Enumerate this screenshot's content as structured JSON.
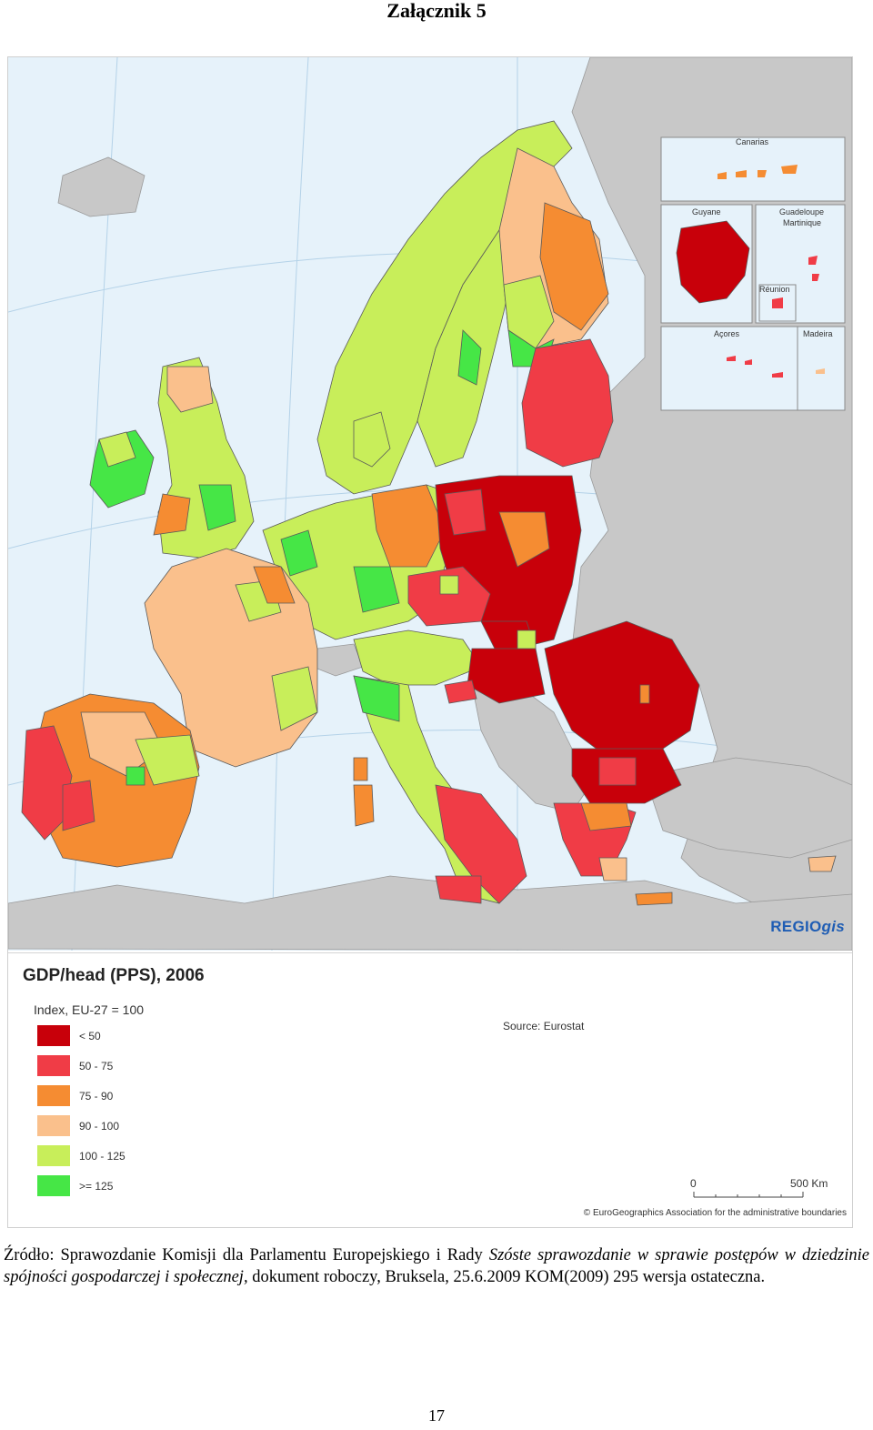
{
  "document": {
    "heading": "Załącznik 5",
    "page_number": "17"
  },
  "map": {
    "title": "GDP/head (PPS), 2006",
    "index_note": "Index, EU-27 = 100",
    "source": "Source: Eurostat",
    "brand_main": "REGIO",
    "brand_suffix": "gis",
    "copyright": "© EuroGeographics Association for the administrative boundaries",
    "scale": {
      "zero": "0",
      "max": "500 Km"
    },
    "insets": {
      "canarias": "Canarias",
      "guyane": "Guyane",
      "guadeloupe": "Guadeloupe",
      "martinique": "Martinique",
      "reunion": "Réunion",
      "acores": "Açores",
      "madeira": "Madeira"
    },
    "legend": [
      {
        "label": "< 50",
        "color": "#c8000a"
      },
      {
        "label": "50 - 75",
        "color": "#f03c46"
      },
      {
        "label": "75 - 90",
        "color": "#f58c32"
      },
      {
        "label": "90 - 100",
        "color": "#fac08c"
      },
      {
        "label": "100 - 125",
        "color": "#c8ee5a"
      },
      {
        "label": ">= 125",
        "color": "#46e646"
      }
    ],
    "colors": {
      "sea": "#e6f2fa",
      "non_eu_land": "#c8c8c8",
      "graticule": "#b4d2e8"
    }
  },
  "caption": {
    "prefix": "Źródło: Sprawozdanie Komisji dla Parlamentu Europejskiego i Rady ",
    "italic_part": "Szóste sprawozdanie w sprawie postępów w dziedzinie spójności gospodarczej i społecznej,",
    "suffix": " dokument roboczy, Bruksela, 25.6.2009 KOM(2009) 295 wersja ostateczna."
  }
}
